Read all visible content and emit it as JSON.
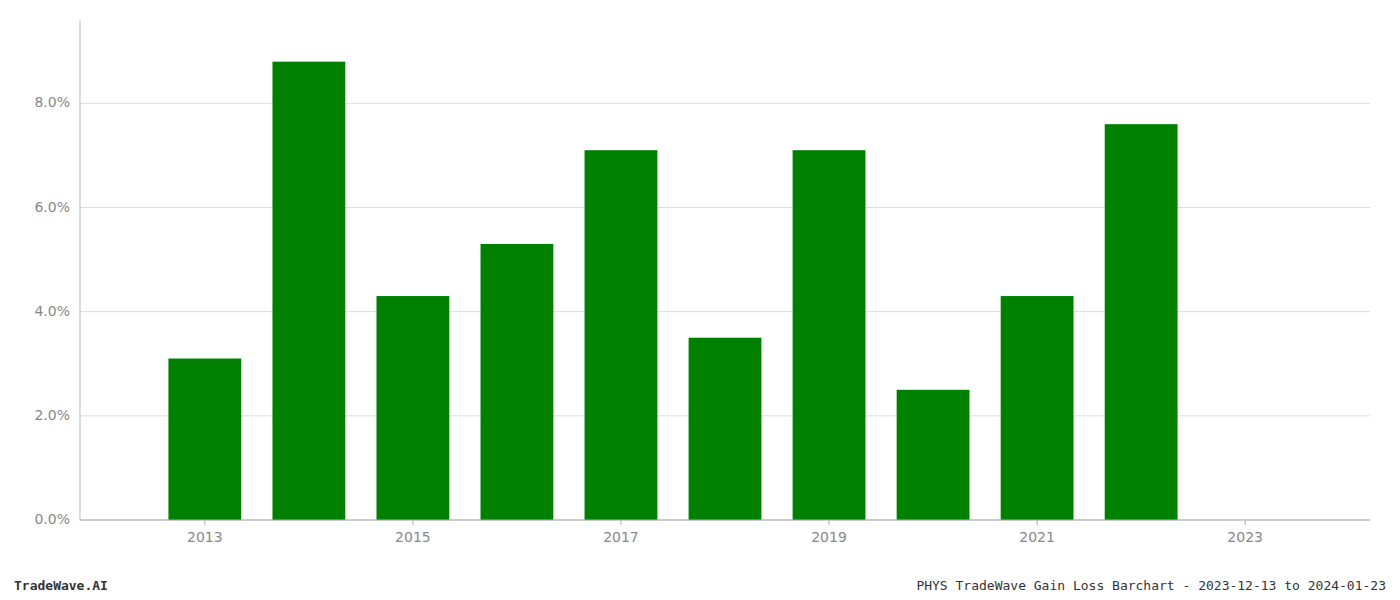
{
  "chart_data": {
    "type": "bar",
    "x": [
      2013,
      2014,
      2015,
      2016,
      2017,
      2018,
      2019,
      2020,
      2021,
      2022
    ],
    "values": [
      0.031,
      0.088,
      0.043,
      0.053,
      0.071,
      0.035,
      0.071,
      0.025,
      0.043,
      0.076
    ],
    "color": "#008000",
    "xlim": [
      2011.8,
      2024.2
    ],
    "xticks": [
      2013,
      2015,
      2017,
      2019,
      2021,
      2023
    ],
    "ylim": [
      0,
      0.096
    ],
    "yticks": [
      {
        "value": 0.0,
        "label": "0.0%"
      },
      {
        "value": 0.02,
        "label": "2.0%"
      },
      {
        "value": 0.04,
        "label": "4.0%"
      },
      {
        "value": 0.06,
        "label": "6.0%"
      },
      {
        "value": 0.08,
        "label": "8.0%"
      }
    ],
    "grid": true,
    "annotations": [
      "TradeWave.AI",
      "PHYS TradeWave Gain Loss Barchart - 2023-12-13 to 2024-01-23"
    ]
  }
}
